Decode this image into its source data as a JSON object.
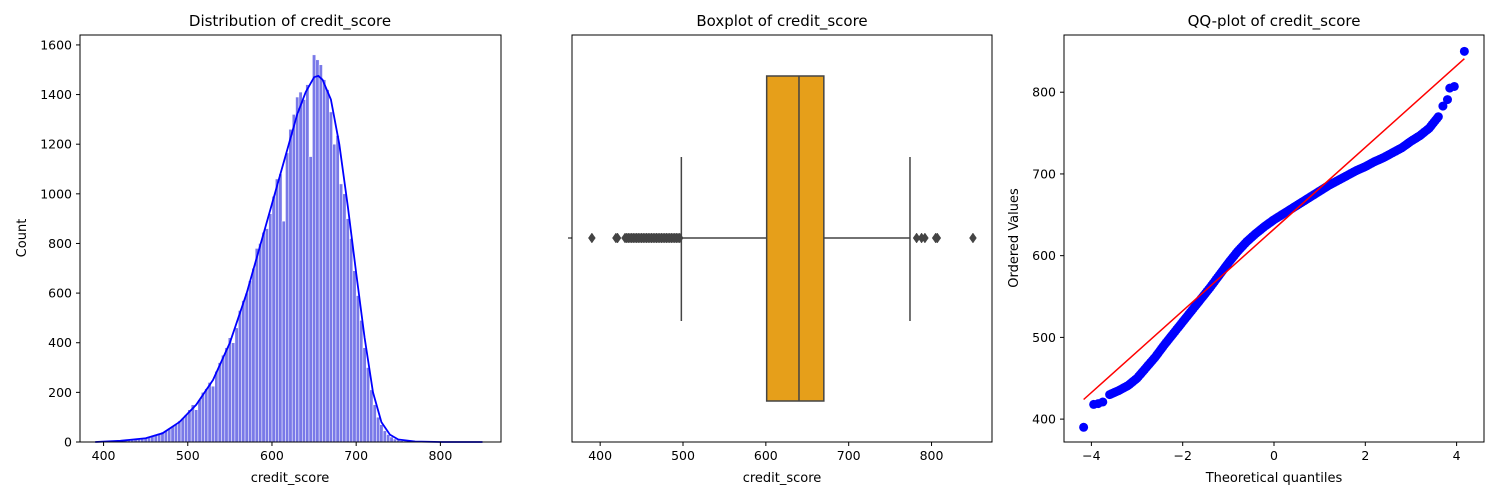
{
  "chart_data": [
    {
      "type": "histogram",
      "title": "Distribution of credit_score",
      "xlabel": "credit_score",
      "ylabel": "Count",
      "xlim": [
        372,
        872
      ],
      "ylim": [
        0,
        1640
      ],
      "xticks": [
        400,
        500,
        600,
        700,
        800
      ],
      "yticks": [
        0,
        200,
        400,
        600,
        800,
        1000,
        1200,
        1400,
        1600
      ],
      "bar_color": "#6a6ae6",
      "kde_color": "#0000ff",
      "bin_width": 4,
      "bins": [
        {
          "x": 396,
          "count": 3
        },
        {
          "x": 400,
          "count": 2
        },
        {
          "x": 404,
          "count": 3
        },
        {
          "x": 408,
          "count": 4
        },
        {
          "x": 412,
          "count": 4
        },
        {
          "x": 416,
          "count": 5
        },
        {
          "x": 420,
          "count": 6
        },
        {
          "x": 424,
          "count": 7
        },
        {
          "x": 428,
          "count": 8
        },
        {
          "x": 432,
          "count": 9
        },
        {
          "x": 436,
          "count": 11
        },
        {
          "x": 440,
          "count": 13
        },
        {
          "x": 444,
          "count": 15
        },
        {
          "x": 448,
          "count": 18
        },
        {
          "x": 452,
          "count": 22
        },
        {
          "x": 456,
          "count": 26
        },
        {
          "x": 460,
          "count": 30
        },
        {
          "x": 464,
          "count": 35
        },
        {
          "x": 468,
          "count": 40
        },
        {
          "x": 472,
          "count": 46
        },
        {
          "x": 476,
          "count": 55
        },
        {
          "x": 480,
          "count": 62
        },
        {
          "x": 484,
          "count": 70
        },
        {
          "x": 488,
          "count": 85
        },
        {
          "x": 492,
          "count": 95
        },
        {
          "x": 496,
          "count": 110
        },
        {
          "x": 500,
          "count": 130
        },
        {
          "x": 504,
          "count": 150
        },
        {
          "x": 508,
          "count": 130
        },
        {
          "x": 512,
          "count": 170
        },
        {
          "x": 516,
          "count": 200
        },
        {
          "x": 520,
          "count": 215
        },
        {
          "x": 524,
          "count": 240
        },
        {
          "x": 528,
          "count": 225
        },
        {
          "x": 532,
          "count": 285
        },
        {
          "x": 536,
          "count": 320
        },
        {
          "x": 540,
          "count": 350
        },
        {
          "x": 544,
          "count": 380
        },
        {
          "x": 548,
          "count": 420
        },
        {
          "x": 552,
          "count": 400
        },
        {
          "x": 556,
          "count": 460
        },
        {
          "x": 560,
          "count": 530
        },
        {
          "x": 564,
          "count": 570
        },
        {
          "x": 568,
          "count": 600
        },
        {
          "x": 572,
          "count": 650
        },
        {
          "x": 576,
          "count": 700
        },
        {
          "x": 580,
          "count": 780
        },
        {
          "x": 584,
          "count": 800
        },
        {
          "x": 588,
          "count": 845
        },
        {
          "x": 592,
          "count": 860
        },
        {
          "x": 596,
          "count": 920
        },
        {
          "x": 600,
          "count": 990
        },
        {
          "x": 604,
          "count": 1060
        },
        {
          "x": 608,
          "count": 1080
        },
        {
          "x": 612,
          "count": 890
        },
        {
          "x": 616,
          "count": 1165
        },
        {
          "x": 620,
          "count": 1260
        },
        {
          "x": 624,
          "count": 1320
        },
        {
          "x": 628,
          "count": 1390
        },
        {
          "x": 632,
          "count": 1410
        },
        {
          "x": 636,
          "count": 1380
        },
        {
          "x": 640,
          "count": 1440
        },
        {
          "x": 644,
          "count": 1150
        },
        {
          "x": 648,
          "count": 1560
        },
        {
          "x": 652,
          "count": 1540
        },
        {
          "x": 656,
          "count": 1520
        },
        {
          "x": 660,
          "count": 1460
        },
        {
          "x": 664,
          "count": 1420
        },
        {
          "x": 668,
          "count": 1330
        },
        {
          "x": 672,
          "count": 1200
        },
        {
          "x": 676,
          "count": 1235
        },
        {
          "x": 680,
          "count": 1040
        },
        {
          "x": 684,
          "count": 1000
        },
        {
          "x": 688,
          "count": 900
        },
        {
          "x": 692,
          "count": 820
        },
        {
          "x": 696,
          "count": 690
        },
        {
          "x": 700,
          "count": 590
        },
        {
          "x": 704,
          "count": 490
        },
        {
          "x": 708,
          "count": 380
        },
        {
          "x": 712,
          "count": 300
        },
        {
          "x": 716,
          "count": 210
        },
        {
          "x": 720,
          "count": 150
        },
        {
          "x": 724,
          "count": 100
        },
        {
          "x": 728,
          "count": 70
        },
        {
          "x": 732,
          "count": 45
        },
        {
          "x": 736,
          "count": 30
        },
        {
          "x": 740,
          "count": 20
        },
        {
          "x": 744,
          "count": 12
        },
        {
          "x": 748,
          "count": 8
        },
        {
          "x": 752,
          "count": 5
        },
        {
          "x": 756,
          "count": 4
        },
        {
          "x": 760,
          "count": 3
        },
        {
          "x": 764,
          "count": 2
        },
        {
          "x": 768,
          "count": 2
        },
        {
          "x": 772,
          "count": 1
        },
        {
          "x": 776,
          "count": 1
        },
        {
          "x": 780,
          "count": 1
        },
        {
          "x": 784,
          "count": 1
        }
      ],
      "kde": [
        {
          "x": 390,
          "y": 0
        },
        {
          "x": 420,
          "y": 5
        },
        {
          "x": 450,
          "y": 15
        },
        {
          "x": 470,
          "y": 35
        },
        {
          "x": 490,
          "y": 80
        },
        {
          "x": 510,
          "y": 150
        },
        {
          "x": 530,
          "y": 250
        },
        {
          "x": 550,
          "y": 400
        },
        {
          "x": 570,
          "y": 600
        },
        {
          "x": 590,
          "y": 840
        },
        {
          "x": 610,
          "y": 1080
        },
        {
          "x": 620,
          "y": 1200
        },
        {
          "x": 630,
          "y": 1320
        },
        {
          "x": 640,
          "y": 1410
        },
        {
          "x": 650,
          "y": 1470
        },
        {
          "x": 655,
          "y": 1475
        },
        {
          "x": 660,
          "y": 1460
        },
        {
          "x": 670,
          "y": 1380
        },
        {
          "x": 680,
          "y": 1200
        },
        {
          "x": 690,
          "y": 950
        },
        {
          "x": 700,
          "y": 680
        },
        {
          "x": 710,
          "y": 420
        },
        {
          "x": 720,
          "y": 200
        },
        {
          "x": 730,
          "y": 80
        },
        {
          "x": 740,
          "y": 30
        },
        {
          "x": 750,
          "y": 10
        },
        {
          "x": 770,
          "y": 2
        },
        {
          "x": 800,
          "y": 0
        },
        {
          "x": 850,
          "y": 0
        }
      ]
    },
    {
      "type": "boxplot",
      "title": "Boxplot of credit_score",
      "xlabel": "credit_score",
      "xlim": [
        366,
        873
      ],
      "xticks": [
        400,
        500,
        600,
        700,
        800
      ],
      "box_color": "#e69f1a",
      "line_color": "#444444",
      "whisker_low": 498,
      "q1": 601,
      "median": 640,
      "q3": 670,
      "whisker_high": 774,
      "outliers": [
        390,
        419,
        421,
        430,
        432,
        434,
        436,
        438,
        440,
        442,
        444,
        446,
        448,
        450,
        452,
        454,
        456,
        458,
        460,
        462,
        464,
        466,
        468,
        470,
        472,
        474,
        476,
        478,
        480,
        482,
        484,
        486,
        488,
        490,
        492,
        494,
        496,
        782,
        788,
        792,
        805,
        807,
        850
      ]
    },
    {
      "type": "scatter",
      "title": "QQ-plot of credit_score",
      "xlabel": "Theoretical quantiles",
      "ylabel": "Ordered Values",
      "xlim": [
        -4.6,
        4.6
      ],
      "ylim": [
        372,
        870
      ],
      "xticks": [
        -4,
        -2,
        0,
        2,
        4
      ],
      "xtick_labels": [
        "−4",
        "−2",
        "0",
        "2",
        "4"
      ],
      "yticks": [
        400,
        500,
        600,
        700,
        800
      ],
      "point_color": "#0000ff",
      "line_color": "#ff0000",
      "fit_line": [
        {
          "x": -4.17,
          "y": 424
        },
        {
          "x": 4.17,
          "y": 841
        }
      ],
      "points": [
        {
          "x": -4.17,
          "y": 390
        },
        {
          "x": -3.95,
          "y": 418
        },
        {
          "x": -3.85,
          "y": 419
        },
        {
          "x": -3.75,
          "y": 421
        },
        {
          "x": -3.6,
          "y": 430
        },
        {
          "x": -3.4,
          "y": 435
        },
        {
          "x": -3.2,
          "y": 441
        },
        {
          "x": -3.0,
          "y": 450
        },
        {
          "x": -2.8,
          "y": 463
        },
        {
          "x": -2.6,
          "y": 476
        },
        {
          "x": -2.4,
          "y": 491
        },
        {
          "x": -2.2,
          "y": 505
        },
        {
          "x": -2.0,
          "y": 519
        },
        {
          "x": -1.8,
          "y": 533
        },
        {
          "x": -1.6,
          "y": 547
        },
        {
          "x": -1.4,
          "y": 561
        },
        {
          "x": -1.2,
          "y": 576
        },
        {
          "x": -1.0,
          "y": 591
        },
        {
          "x": -0.8,
          "y": 605
        },
        {
          "x": -0.6,
          "y": 617
        },
        {
          "x": -0.4,
          "y": 627
        },
        {
          "x": -0.2,
          "y": 636
        },
        {
          "x": 0.0,
          "y": 644
        },
        {
          "x": 0.2,
          "y": 651
        },
        {
          "x": 0.4,
          "y": 658
        },
        {
          "x": 0.6,
          "y": 665
        },
        {
          "x": 0.8,
          "y": 672
        },
        {
          "x": 1.0,
          "y": 679
        },
        {
          "x": 1.2,
          "y": 686
        },
        {
          "x": 1.4,
          "y": 692
        },
        {
          "x": 1.6,
          "y": 698
        },
        {
          "x": 1.8,
          "y": 704
        },
        {
          "x": 2.0,
          "y": 709
        },
        {
          "x": 2.2,
          "y": 715
        },
        {
          "x": 2.4,
          "y": 720
        },
        {
          "x": 2.6,
          "y": 726
        },
        {
          "x": 2.8,
          "y": 732
        },
        {
          "x": 3.0,
          "y": 740
        },
        {
          "x": 3.2,
          "y": 747
        },
        {
          "x": 3.4,
          "y": 756
        },
        {
          "x": 3.6,
          "y": 770
        },
        {
          "x": 3.7,
          "y": 783
        },
        {
          "x": 3.8,
          "y": 791
        },
        {
          "x": 3.85,
          "y": 805
        },
        {
          "x": 3.95,
          "y": 807
        },
        {
          "x": 4.17,
          "y": 850
        }
      ]
    }
  ]
}
